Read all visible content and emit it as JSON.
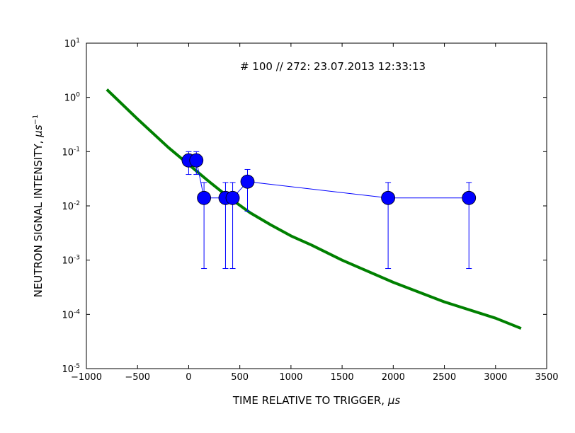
{
  "chart_data": {
    "type": "scatter",
    "title": "# 100 // 272: 23.07.2013 12:33:13",
    "xlabel": "TIME RELATIVE TO TRIGGER, ",
    "xlabel_unit": "μs",
    "ylabel": "NEUTRON SIGNAL INTENSITY, ",
    "ylabel_unit": "μs",
    "ylabel_unit_exp": "−1",
    "x_scale": "linear",
    "y_scale": "log",
    "xlim": [
      -1000,
      3500
    ],
    "ylim": [
      1e-05,
      10
    ],
    "x_ticks": [
      -1000,
      -500,
      0,
      500,
      1000,
      1500,
      2000,
      2500,
      3000,
      3500
    ],
    "x_tick_labels": [
      "−1000",
      "−500",
      "0",
      "500",
      "1000",
      "1500",
      "2000",
      "2500",
      "3000",
      "3500"
    ],
    "y_ticks": [
      {
        "value": 1e-05,
        "base": "10",
        "exp": "-5"
      },
      {
        "value": 0.0001,
        "base": "10",
        "exp": "-4"
      },
      {
        "value": 0.001,
        "base": "10",
        "exp": "-3"
      },
      {
        "value": 0.01,
        "base": "10",
        "exp": "-2"
      },
      {
        "value": 0.1,
        "base": "10",
        "exp": "-1"
      },
      {
        "value": 1,
        "base": "10",
        "exp": "0"
      },
      {
        "value": 10,
        "base": "10",
        "exp": "1"
      }
    ],
    "grid": false,
    "series": [
      {
        "kind": "points_with_errorbars",
        "color": "#0000ff",
        "points": [
          {
            "x": 0,
            "y": 0.069,
            "lo": 0.038,
            "hi": 0.1
          },
          {
            "x": 75,
            "y": 0.069,
            "lo": 0.038,
            "hi": 0.1
          },
          {
            "x": 150,
            "y": 0.014,
            "lo": 0.0007,
            "hi": 0.027
          },
          {
            "x": 360,
            "y": 0.014,
            "lo": 0.0007,
            "hi": 0.027
          },
          {
            "x": 430,
            "y": 0.014,
            "lo": 0.0007,
            "hi": 0.027
          },
          {
            "x": 575,
            "y": 0.028,
            "lo": 0.008,
            "hi": 0.047
          },
          {
            "x": 1950,
            "y": 0.014,
            "lo": 0.0007,
            "hi": 0.027
          },
          {
            "x": 2740,
            "y": 0.014,
            "lo": 0.0007,
            "hi": 0.027
          }
        ]
      },
      {
        "kind": "line",
        "color": "#008000",
        "points": [
          {
            "x": -800,
            "y": 1.4
          },
          {
            "x": -500,
            "y": 0.4
          },
          {
            "x": -200,
            "y": 0.12
          },
          {
            "x": 0,
            "y": 0.058
          },
          {
            "x": 200,
            "y": 0.028
          },
          {
            "x": 400,
            "y": 0.014
          },
          {
            "x": 600,
            "y": 0.0075
          },
          {
            "x": 800,
            "y": 0.0045
          },
          {
            "x": 1000,
            "y": 0.0028
          },
          {
            "x": 1200,
            "y": 0.0019
          },
          {
            "x": 1500,
            "y": 0.001
          },
          {
            "x": 2000,
            "y": 0.00039
          },
          {
            "x": 2500,
            "y": 0.00017
          },
          {
            "x": 3000,
            "y": 8.5e-05
          },
          {
            "x": 3250,
            "y": 5.5e-05
          }
        ]
      }
    ]
  }
}
